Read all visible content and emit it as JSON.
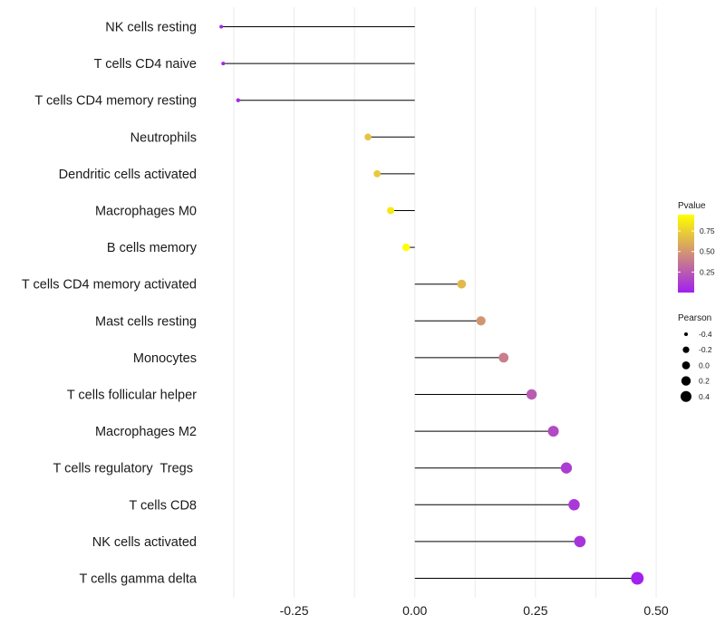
{
  "chart_data": {
    "type": "lollipop",
    "title": "",
    "xlabel": "",
    "ylabel": "",
    "xlim": [
      -0.405,
      0.545
    ],
    "x_ticks": [
      -0.25,
      0.0,
      0.25,
      0.5
    ],
    "x_tick_labels": [
      "-0.25",
      "0.00",
      "0.25",
      "0.50"
    ],
    "baseline": 0.0,
    "categories": [
      "NK cells resting",
      "T cells CD4 naive",
      "T cells CD4 memory resting",
      "Neutrophils",
      "Dendritic cells activated",
      "Macrophages M0",
      "B cells memory",
      "T cells CD4 memory activated",
      "Mast cells resting",
      "Monocytes",
      "T cells follicular helper",
      "Macrophages M2",
      "T cells regulatory  Tregs ",
      "T cells CD8",
      "NK cells activated",
      "T cells gamma delta"
    ],
    "values": [
      -0.401,
      -0.397,
      -0.366,
      -0.097,
      -0.078,
      -0.05,
      -0.018,
      0.097,
      0.137,
      0.184,
      0.242,
      0.287,
      0.314,
      0.33,
      0.342,
      0.461
    ],
    "pvalues": [
      0.02,
      0.02,
      0.03,
      0.7,
      0.72,
      0.85,
      0.95,
      0.65,
      0.5,
      0.4,
      0.25,
      0.18,
      0.12,
      0.1,
      0.08,
      0.01
    ],
    "legend_color": {
      "title": "Pvalue",
      "ticks": [
        0.25,
        0.5,
        0.75
      ],
      "tick_labels": [
        "0.25",
        "0.50",
        "0.75"
      ],
      "range": [
        0.0,
        0.95
      ],
      "low_color": "#a020f0",
      "high_color": "#ffff00"
    },
    "legend_size": {
      "title": "Pearson",
      "values": [
        -0.4,
        -0.2,
        0.0,
        0.2,
        0.4
      ],
      "labels": [
        "-0.4",
        "-0.2",
        "0.0",
        "0.2",
        "0.4"
      ]
    },
    "legend_placement": "right"
  }
}
